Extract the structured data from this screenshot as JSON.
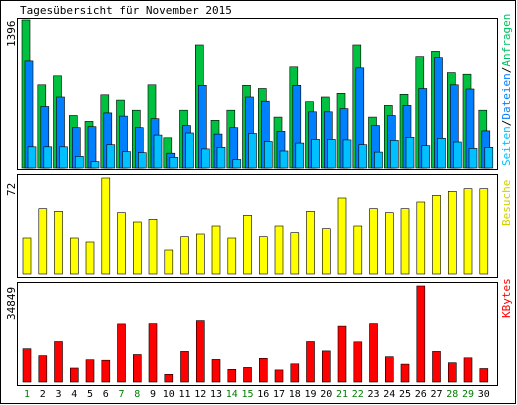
{
  "title": "Tagesübersicht für November 2015",
  "chart_data": [
    {
      "type": "bar",
      "panel": "top",
      "ymax_label": "1396",
      "right_label": {
        "parts": [
          {
            "text": "Seiten",
            "color": "#00c0ff"
          },
          {
            "text": "/",
            "color": "#000000"
          },
          {
            "text": "Dateien",
            "color": "#0080ff"
          },
          {
            "text": "/",
            "color": "#000000"
          },
          {
            "text": "Anfragen",
            "color": "#00c060"
          }
        ]
      },
      "colors": {
        "anfragen": "#00c040",
        "dateien": "#0080ff",
        "seiten": "#00c0ff"
      },
      "categories": [
        "1",
        "2",
        "3",
        "4",
        "5",
        "6",
        "7",
        "8",
        "9",
        "10",
        "11",
        "12",
        "13",
        "14",
        "15",
        "16",
        "17",
        "18",
        "19",
        "20",
        "21",
        "22",
        "23",
        "24",
        "25",
        "26",
        "27",
        "28",
        "29",
        "30"
      ],
      "series": [
        {
          "name": "Anfragen",
          "values": [
            1396,
            785,
            870,
            495,
            440,
            690,
            640,
            545,
            785,
            285,
            545,
            1160,
            450,
            545,
            780,
            750,
            480,
            955,
            625,
            670,
            705,
            1160,
            480,
            590,
            695,
            1050,
            1100,
            900,
            885,
            545
          ]
        },
        {
          "name": "Dateien",
          "values": [
            1010,
            580,
            670,
            380,
            390,
            520,
            490,
            380,
            465,
            140,
            400,
            780,
            320,
            380,
            670,
            630,
            345,
            780,
            530,
            530,
            560,
            945,
            400,
            495,
            590,
            750,
            1040,
            785,
            745,
            350
          ]
        },
        {
          "name": "Seiten",
          "values": [
            200,
            200,
            200,
            110,
            60,
            220,
            155,
            145,
            310,
            100,
            330,
            180,
            195,
            80,
            325,
            250,
            160,
            235,
            270,
            270,
            265,
            220,
            150,
            260,
            290,
            210,
            280,
            245,
            185,
            195
          ]
        }
      ]
    },
    {
      "type": "bar",
      "panel": "middle",
      "ymax_label": "72",
      "right_label": {
        "parts": [
          {
            "text": "Besuche",
            "color": "#d0d000"
          }
        ]
      },
      "color": "#ffff00",
      "categories": [
        "1",
        "2",
        "3",
        "4",
        "5",
        "6",
        "7",
        "8",
        "9",
        "10",
        "11",
        "12",
        "13",
        "14",
        "15",
        "16",
        "17",
        "18",
        "19",
        "20",
        "21",
        "22",
        "23",
        "24",
        "25",
        "26",
        "27",
        "28",
        "29",
        "30"
      ],
      "series": [
        {
          "name": "Besuche",
          "values": [
            27,
            49,
            47,
            27,
            24,
            72,
            46,
            39,
            41,
            18,
            28,
            30,
            36,
            27,
            44,
            28,
            36,
            31,
            47,
            34,
            57,
            36,
            49,
            46,
            49,
            54,
            59,
            62,
            64,
            64
          ]
        }
      ]
    },
    {
      "type": "bar",
      "panel": "bottom",
      "ymax_label": "34849",
      "right_label": {
        "parts": [
          {
            "text": "KBytes",
            "color": "#ff0000"
          }
        ]
      },
      "color": "#ff0000",
      "categories": [
        "1",
        "2",
        "3",
        "4",
        "5",
        "6",
        "7",
        "8",
        "9",
        "10",
        "11",
        "12",
        "13",
        "14",
        "15",
        "16",
        "17",
        "18",
        "19",
        "20",
        "21",
        "22",
        "23",
        "24",
        "25",
        "26",
        "27",
        "28",
        "29",
        "30"
      ],
      "series": [
        {
          "name": "KBytes",
          "values": [
            12100,
            9600,
            14700,
            5100,
            8100,
            7900,
            21100,
            10000,
            21200,
            2800,
            11100,
            22300,
            8200,
            4600,
            5300,
            8600,
            4400,
            6600,
            14700,
            11300,
            20300,
            14600,
            21200,
            9200,
            6500,
            34849,
            11100,
            7000,
            8800,
            4900
          ]
        }
      ]
    }
  ],
  "x_labels": [
    {
      "text": "1",
      "color": "#008000"
    },
    {
      "text": "2",
      "color": "#000000"
    },
    {
      "text": "3",
      "color": "#000000"
    },
    {
      "text": "4",
      "color": "#000000"
    },
    {
      "text": "5",
      "color": "#000000"
    },
    {
      "text": "6",
      "color": "#000000"
    },
    {
      "text": "7",
      "color": "#008000"
    },
    {
      "text": "8",
      "color": "#008000"
    },
    {
      "text": "9",
      "color": "#000000"
    },
    {
      "text": "10",
      "color": "#000000"
    },
    {
      "text": "11",
      "color": "#000000"
    },
    {
      "text": "12",
      "color": "#000000"
    },
    {
      "text": "13",
      "color": "#000000"
    },
    {
      "text": "14",
      "color": "#008000"
    },
    {
      "text": "15",
      "color": "#008000"
    },
    {
      "text": "16",
      "color": "#000000"
    },
    {
      "text": "17",
      "color": "#000000"
    },
    {
      "text": "18",
      "color": "#000000"
    },
    {
      "text": "19",
      "color": "#000000"
    },
    {
      "text": "20",
      "color": "#000000"
    },
    {
      "text": "21",
      "color": "#008000"
    },
    {
      "text": "22",
      "color": "#008000"
    },
    {
      "text": "23",
      "color": "#000000"
    },
    {
      "text": "24",
      "color": "#000000"
    },
    {
      "text": "25",
      "color": "#000000"
    },
    {
      "text": "26",
      "color": "#000000"
    },
    {
      "text": "27",
      "color": "#000000"
    },
    {
      "text": "28",
      "color": "#008000"
    },
    {
      "text": "29",
      "color": "#008000"
    },
    {
      "text": "30",
      "color": "#000000"
    }
  ]
}
